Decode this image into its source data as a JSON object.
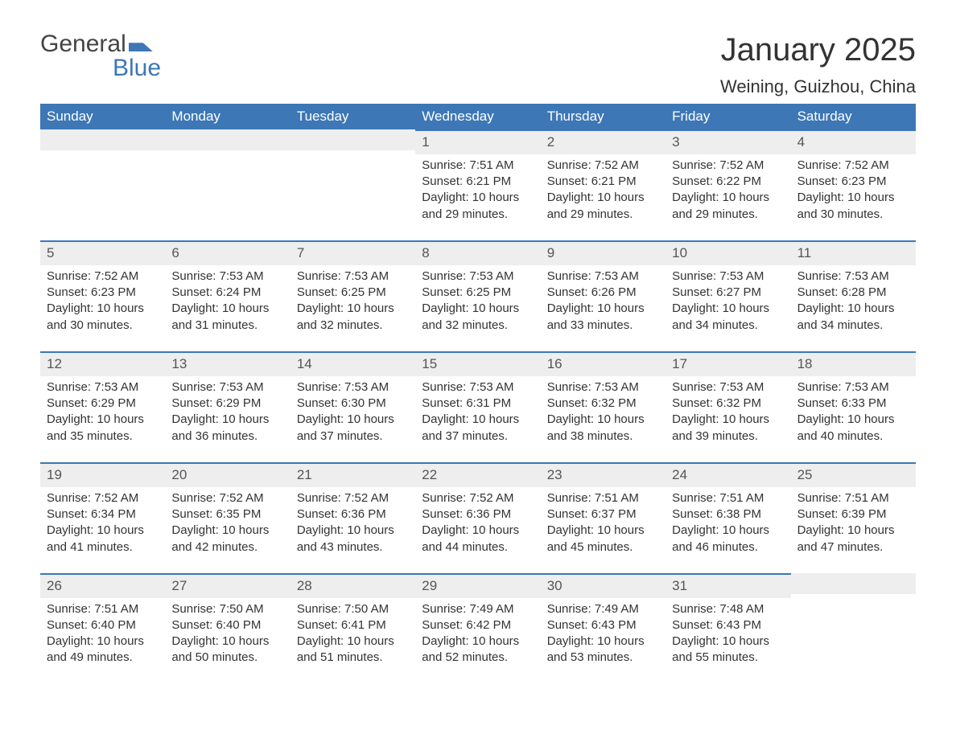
{
  "logo": {
    "general": "General",
    "blue": "Blue"
  },
  "title": "January 2025",
  "location": "Weining, Guizhou, China",
  "colors": {
    "header_bg": "#3d77b6",
    "header_text": "#ffffff",
    "daynum_bg": "#eeeeee",
    "daynum_border": "#3d77b6",
    "text": "#333333",
    "page_bg": "#ffffff"
  },
  "fonts": {
    "title_size_pt": 30,
    "location_size_pt": 17,
    "weekday_size_pt": 13,
    "body_size_pt": 11
  },
  "weekdays": [
    "Sunday",
    "Monday",
    "Tuesday",
    "Wednesday",
    "Thursday",
    "Friday",
    "Saturday"
  ],
  "weeks": [
    [
      null,
      null,
      null,
      {
        "n": "1",
        "sunrise": "Sunrise: 7:51 AM",
        "sunset": "Sunset: 6:21 PM",
        "day1": "Daylight: 10 hours",
        "day2": "and 29 minutes."
      },
      {
        "n": "2",
        "sunrise": "Sunrise: 7:52 AM",
        "sunset": "Sunset: 6:21 PM",
        "day1": "Daylight: 10 hours",
        "day2": "and 29 minutes."
      },
      {
        "n": "3",
        "sunrise": "Sunrise: 7:52 AM",
        "sunset": "Sunset: 6:22 PM",
        "day1": "Daylight: 10 hours",
        "day2": "and 29 minutes."
      },
      {
        "n": "4",
        "sunrise": "Sunrise: 7:52 AM",
        "sunset": "Sunset: 6:23 PM",
        "day1": "Daylight: 10 hours",
        "day2": "and 30 minutes."
      }
    ],
    [
      {
        "n": "5",
        "sunrise": "Sunrise: 7:52 AM",
        "sunset": "Sunset: 6:23 PM",
        "day1": "Daylight: 10 hours",
        "day2": "and 30 minutes."
      },
      {
        "n": "6",
        "sunrise": "Sunrise: 7:53 AM",
        "sunset": "Sunset: 6:24 PM",
        "day1": "Daylight: 10 hours",
        "day2": "and 31 minutes."
      },
      {
        "n": "7",
        "sunrise": "Sunrise: 7:53 AM",
        "sunset": "Sunset: 6:25 PM",
        "day1": "Daylight: 10 hours",
        "day2": "and 32 minutes."
      },
      {
        "n": "8",
        "sunrise": "Sunrise: 7:53 AM",
        "sunset": "Sunset: 6:25 PM",
        "day1": "Daylight: 10 hours",
        "day2": "and 32 minutes."
      },
      {
        "n": "9",
        "sunrise": "Sunrise: 7:53 AM",
        "sunset": "Sunset: 6:26 PM",
        "day1": "Daylight: 10 hours",
        "day2": "and 33 minutes."
      },
      {
        "n": "10",
        "sunrise": "Sunrise: 7:53 AM",
        "sunset": "Sunset: 6:27 PM",
        "day1": "Daylight: 10 hours",
        "day2": "and 34 minutes."
      },
      {
        "n": "11",
        "sunrise": "Sunrise: 7:53 AM",
        "sunset": "Sunset: 6:28 PM",
        "day1": "Daylight: 10 hours",
        "day2": "and 34 minutes."
      }
    ],
    [
      {
        "n": "12",
        "sunrise": "Sunrise: 7:53 AM",
        "sunset": "Sunset: 6:29 PM",
        "day1": "Daylight: 10 hours",
        "day2": "and 35 minutes."
      },
      {
        "n": "13",
        "sunrise": "Sunrise: 7:53 AM",
        "sunset": "Sunset: 6:29 PM",
        "day1": "Daylight: 10 hours",
        "day2": "and 36 minutes."
      },
      {
        "n": "14",
        "sunrise": "Sunrise: 7:53 AM",
        "sunset": "Sunset: 6:30 PM",
        "day1": "Daylight: 10 hours",
        "day2": "and 37 minutes."
      },
      {
        "n": "15",
        "sunrise": "Sunrise: 7:53 AM",
        "sunset": "Sunset: 6:31 PM",
        "day1": "Daylight: 10 hours",
        "day2": "and 37 minutes."
      },
      {
        "n": "16",
        "sunrise": "Sunrise: 7:53 AM",
        "sunset": "Sunset: 6:32 PM",
        "day1": "Daylight: 10 hours",
        "day2": "and 38 minutes."
      },
      {
        "n": "17",
        "sunrise": "Sunrise: 7:53 AM",
        "sunset": "Sunset: 6:32 PM",
        "day1": "Daylight: 10 hours",
        "day2": "and 39 minutes."
      },
      {
        "n": "18",
        "sunrise": "Sunrise: 7:53 AM",
        "sunset": "Sunset: 6:33 PM",
        "day1": "Daylight: 10 hours",
        "day2": "and 40 minutes."
      }
    ],
    [
      {
        "n": "19",
        "sunrise": "Sunrise: 7:52 AM",
        "sunset": "Sunset: 6:34 PM",
        "day1": "Daylight: 10 hours",
        "day2": "and 41 minutes."
      },
      {
        "n": "20",
        "sunrise": "Sunrise: 7:52 AM",
        "sunset": "Sunset: 6:35 PM",
        "day1": "Daylight: 10 hours",
        "day2": "and 42 minutes."
      },
      {
        "n": "21",
        "sunrise": "Sunrise: 7:52 AM",
        "sunset": "Sunset: 6:36 PM",
        "day1": "Daylight: 10 hours",
        "day2": "and 43 minutes."
      },
      {
        "n": "22",
        "sunrise": "Sunrise: 7:52 AM",
        "sunset": "Sunset: 6:36 PM",
        "day1": "Daylight: 10 hours",
        "day2": "and 44 minutes."
      },
      {
        "n": "23",
        "sunrise": "Sunrise: 7:51 AM",
        "sunset": "Sunset: 6:37 PM",
        "day1": "Daylight: 10 hours",
        "day2": "and 45 minutes."
      },
      {
        "n": "24",
        "sunrise": "Sunrise: 7:51 AM",
        "sunset": "Sunset: 6:38 PM",
        "day1": "Daylight: 10 hours",
        "day2": "and 46 minutes."
      },
      {
        "n": "25",
        "sunrise": "Sunrise: 7:51 AM",
        "sunset": "Sunset: 6:39 PM",
        "day1": "Daylight: 10 hours",
        "day2": "and 47 minutes."
      }
    ],
    [
      {
        "n": "26",
        "sunrise": "Sunrise: 7:51 AM",
        "sunset": "Sunset: 6:40 PM",
        "day1": "Daylight: 10 hours",
        "day2": "and 49 minutes."
      },
      {
        "n": "27",
        "sunrise": "Sunrise: 7:50 AM",
        "sunset": "Sunset: 6:40 PM",
        "day1": "Daylight: 10 hours",
        "day2": "and 50 minutes."
      },
      {
        "n": "28",
        "sunrise": "Sunrise: 7:50 AM",
        "sunset": "Sunset: 6:41 PM",
        "day1": "Daylight: 10 hours",
        "day2": "and 51 minutes."
      },
      {
        "n": "29",
        "sunrise": "Sunrise: 7:49 AM",
        "sunset": "Sunset: 6:42 PM",
        "day1": "Daylight: 10 hours",
        "day2": "and 52 minutes."
      },
      {
        "n": "30",
        "sunrise": "Sunrise: 7:49 AM",
        "sunset": "Sunset: 6:43 PM",
        "day1": "Daylight: 10 hours",
        "day2": "and 53 minutes."
      },
      {
        "n": "31",
        "sunrise": "Sunrise: 7:48 AM",
        "sunset": "Sunset: 6:43 PM",
        "day1": "Daylight: 10 hours",
        "day2": "and 55 minutes."
      },
      null
    ]
  ]
}
